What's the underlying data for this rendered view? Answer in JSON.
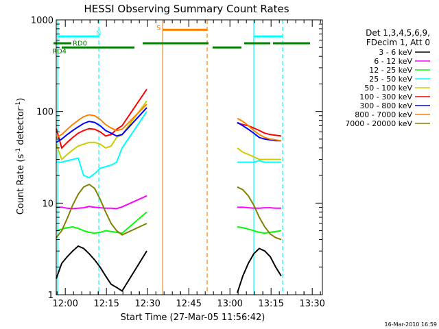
{
  "chart_data": {
    "type": "line",
    "title": "HESSI Observing Summary Count Rates",
    "xlabel": "Start Time (27-Mar-05 11:56:42)",
    "ylabel_main": "Count Rate (s",
    "ylabel_sup1": "-1",
    "ylabel_mid": " detector",
    "ylabel_sup2": "-1",
    "ylabel_end": ")",
    "footer_date": "16-Mar-2010 16:59",
    "x_ticks": [
      "12:00",
      "12:15",
      "12:30",
      "12:45",
      "13:00",
      "13:15",
      "13:30"
    ],
    "x_tick_minutes": [
      3.3,
      18.3,
      33.3,
      48.3,
      63.3,
      78.3,
      93.3
    ],
    "xlim_minutes": [
      0,
      97
    ],
    "y_scale": "log",
    "ylim": [
      1,
      1000
    ],
    "y_ticks": [
      "1",
      "10",
      "100",
      "1000"
    ],
    "y_tick_values": [
      1,
      10,
      100,
      1000
    ],
    "legend_header": [
      "Det 1,3,4,5,6,9,",
      "FDecim 1, Att 0"
    ],
    "legend_position": "right",
    "series": [
      {
        "name": "3 - 6 keV",
        "color": "#000000",
        "values": [
          1.5,
          2.2,
          2.6,
          3.0,
          3.4,
          3.2,
          2.8,
          2.4,
          2.0,
          1.6,
          1.3,
          1.2,
          1.1,
          3.0,
          1.05,
          1.6,
          2.2,
          2.8,
          3.2,
          3.0,
          2.6,
          2.0,
          1.6
        ]
      },
      {
        "name": "6 - 12 keV",
        "color": "#ff00ff",
        "values": [
          9.0,
          9.0,
          8.8,
          8.7,
          8.8,
          8.9,
          9.2,
          9.0,
          8.9,
          8.8,
          8.8,
          8.7,
          9.1,
          12.0,
          9.0,
          9.0,
          8.9,
          8.8,
          8.8,
          8.9,
          8.9,
          8.8,
          8.8
        ]
      },
      {
        "name": "12 - 25 keV",
        "color": "#00ff00",
        "values": [
          5.0,
          5.2,
          5.4,
          5.5,
          5.3,
          5.0,
          4.8,
          4.7,
          4.8,
          5.0,
          4.9,
          4.8,
          4.7,
          8.0,
          5.5,
          5.4,
          5.2,
          5.0,
          4.8,
          4.7,
          4.8,
          4.9,
          5.0
        ]
      },
      {
        "name": "25 - 50 keV",
        "color": "#00ffff",
        "values": [
          28,
          28,
          29,
          30,
          31,
          20,
          19,
          21,
          24,
          25,
          26,
          28,
          40,
          100,
          28,
          28,
          28,
          28,
          29,
          28,
          28,
          28,
          28
        ]
      },
      {
        "name": "50 - 100 keV",
        "color": "#cccc00",
        "values": [
          44,
          30,
          34,
          38,
          42,
          44,
          46,
          46,
          44,
          40,
          42,
          52,
          56,
          130,
          40,
          36,
          34,
          32,
          30,
          30,
          30,
          30,
          30
        ]
      },
      {
        "name": "100 - 300 keV",
        "color": "#ff0000",
        "values": [
          65,
          40,
          46,
          52,
          58,
          62,
          65,
          64,
          60,
          54,
          56,
          64,
          70,
          175,
          75,
          72,
          70,
          66,
          62,
          58,
          56,
          55,
          54
        ]
      },
      {
        "name": "300 - 800 keV",
        "color": "#0000ff",
        "values": [
          46,
          50,
          56,
          62,
          68,
          74,
          78,
          76,
          70,
          62,
          58,
          54,
          56,
          110,
          76,
          70,
          64,
          58,
          52,
          50,
          49,
          48,
          48
        ]
      },
      {
        "name": "800 - 7000 keV",
        "color": "#ff8000",
        "values": [
          52,
          56,
          64,
          72,
          80,
          88,
          92,
          90,
          82,
          72,
          66,
          62,
          64,
          120,
          84,
          78,
          70,
          62,
          56,
          52,
          50,
          49,
          48
        ]
      },
      {
        "name": "7000 - 20000 keV",
        "color": "#808000",
        "values": [
          4.2,
          5.0,
          6.8,
          9.5,
          12.5,
          15.0,
          16.0,
          14.5,
          11.0,
          8.0,
          6.0,
          5.0,
          4.5,
          6.0,
          15.0,
          14.0,
          12.0,
          9.5,
          7.0,
          5.5,
          4.6,
          4.2,
          4.0
        ]
      }
    ],
    "series_times": {
      "pre": [
        0,
        2,
        4,
        6,
        8,
        10,
        12,
        14,
        16,
        18,
        20,
        22,
        24
      ],
      "rise": [
        33
      ],
      "post": [
        66,
        68,
        70,
        72,
        74,
        76,
        78,
        80,
        82
      ]
    },
    "annotations": {
      "labels": [
        {
          "text": "N",
          "color": "#00ffff",
          "minute": 14.5,
          "level": 730
        },
        {
          "text": "S",
          "color": "#ff8000",
          "minute": 36.5,
          "level": 830
        },
        {
          "text": "RD0",
          "color": "#008000",
          "minute": 6.0,
          "level": 560
        },
        {
          "text": "RD4",
          "color": "#008000",
          "minute": -1.5,
          "level": 460
        }
      ],
      "saa_bars": [
        {
          "color": "#ff8000",
          "start": 38.8,
          "end": 55.0,
          "level": 780
        },
        {
          "color": "#00ffff",
          "start": 0.5,
          "end": 15.5,
          "level": 660
        },
        {
          "color": "#00ffff",
          "start": 72.0,
          "end": 82.5,
          "level": 660
        }
      ],
      "mode_bars": [
        {
          "color": "#008000",
          "start": -2.5,
          "end": 5.5,
          "level": 555
        },
        {
          "color": "#008000",
          "start": 2.0,
          "end": 28.5,
          "level": 500
        },
        {
          "color": "#008000",
          "start": 31.5,
          "end": 55.5,
          "level": 555
        },
        {
          "color": "#008000",
          "start": 57.0,
          "end": 67.5,
          "level": 500
        },
        {
          "color": "#008000",
          "start": 68.5,
          "end": 78.0,
          "level": 555
        },
        {
          "color": "#008000",
          "start": 79.0,
          "end": 92.5,
          "level": 555
        }
      ],
      "vertical_lines": [
        {
          "color": "#00ffff",
          "minute": 0.5,
          "style": "solid"
        },
        {
          "color": "#00ffff",
          "minute": 15.5,
          "style": "dashed"
        },
        {
          "color": "#ff8000",
          "minute": 38.8,
          "style": "solid"
        },
        {
          "color": "#ff8000",
          "minute": 55.0,
          "style": "dashed"
        },
        {
          "color": "#00ffff",
          "minute": 72.0,
          "style": "solid"
        },
        {
          "color": "#00ffff",
          "minute": 82.5,
          "style": "dashed"
        }
      ]
    }
  }
}
